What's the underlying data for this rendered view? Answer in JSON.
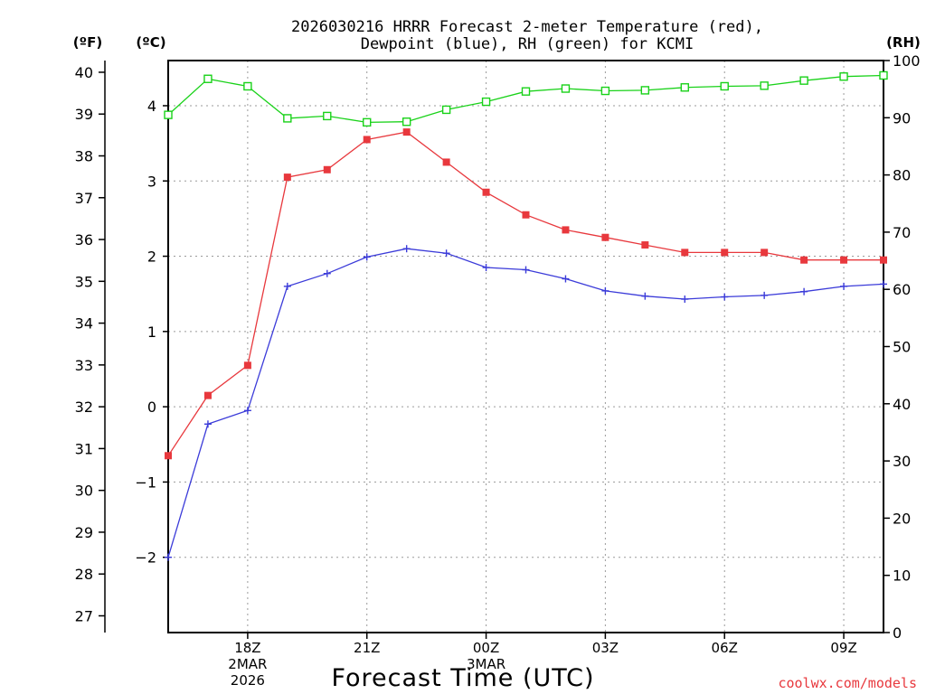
{
  "chart_data": {
    "type": "line",
    "title_line1": "2026030216 HRRR Forecast 2-meter Temperature (red),",
    "title_line2": "Dewpoint (blue), RH (green) for KCMI",
    "xlabel": "Forecast Time (UTC)",
    "credit": "coolwx.com/models",
    "unit_f": "(ºF)",
    "unit_c": "(ºC)",
    "unit_rh": "(RH)",
    "x_hours": [
      16,
      17,
      18,
      19,
      20,
      21,
      22,
      23,
      24,
      25,
      26,
      27,
      28,
      29,
      30,
      31,
      32,
      33,
      34
    ],
    "x_range": [
      16,
      34
    ],
    "x_ticks": [
      {
        "hour": 18,
        "lines": [
          "18Z",
          "2MAR",
          "2026"
        ]
      },
      {
        "hour": 21,
        "lines": [
          "21Z"
        ]
      },
      {
        "hour": 24,
        "lines": [
          "00Z",
          "3MAR"
        ]
      },
      {
        "hour": 27,
        "lines": [
          "03Z"
        ]
      },
      {
        "hour": 30,
        "lines": [
          "06Z"
        ]
      },
      {
        "hour": 33,
        "lines": [
          "09Z"
        ]
      }
    ],
    "c_axis": {
      "range": [
        -3.0,
        4.6
      ],
      "ticks": [
        -2,
        -1,
        0,
        1,
        2,
        3,
        4
      ],
      "labels": [
        "−2",
        "−1",
        "0",
        "1",
        "2",
        "3",
        "4"
      ]
    },
    "f_ticks": [
      27,
      28,
      29,
      30,
      31,
      32,
      33,
      34,
      35,
      36,
      37,
      38,
      39,
      40
    ],
    "rh_axis": {
      "range": [
        0,
        100
      ],
      "ticks": [
        0,
        10,
        20,
        30,
        40,
        50,
        60,
        70,
        80,
        90,
        100
      ]
    },
    "series": [
      {
        "name": "Temperature",
        "unit": "C",
        "color": "#e8383d",
        "marker": "filled-square",
        "values": [
          -0.65,
          0.15,
          0.55,
          3.05,
          3.15,
          3.55,
          3.65,
          3.25,
          2.85,
          2.55,
          2.35,
          2.25,
          2.15,
          2.05,
          2.05,
          2.05,
          1.95,
          1.95,
          1.95
        ]
      },
      {
        "name": "Dewpoint",
        "unit": "C",
        "color": "#3b3bd9",
        "marker": "plus",
        "values": [
          -2.0,
          -0.23,
          -0.05,
          1.6,
          1.77,
          1.99,
          2.1,
          2.04,
          1.85,
          1.82,
          1.7,
          1.54,
          1.47,
          1.43,
          1.46,
          1.48,
          1.53,
          1.6,
          1.63
        ]
      },
      {
        "name": "RH",
        "unit": "%",
        "color": "#19d219",
        "marker": "open-square",
        "values": [
          90.5,
          96.8,
          95.5,
          89.9,
          90.3,
          89.2,
          89.3,
          91.4,
          92.8,
          94.6,
          95.1,
          94.7,
          94.8,
          95.3,
          95.5,
          95.6,
          96.5,
          97.2,
          97.4
        ]
      }
    ]
  }
}
